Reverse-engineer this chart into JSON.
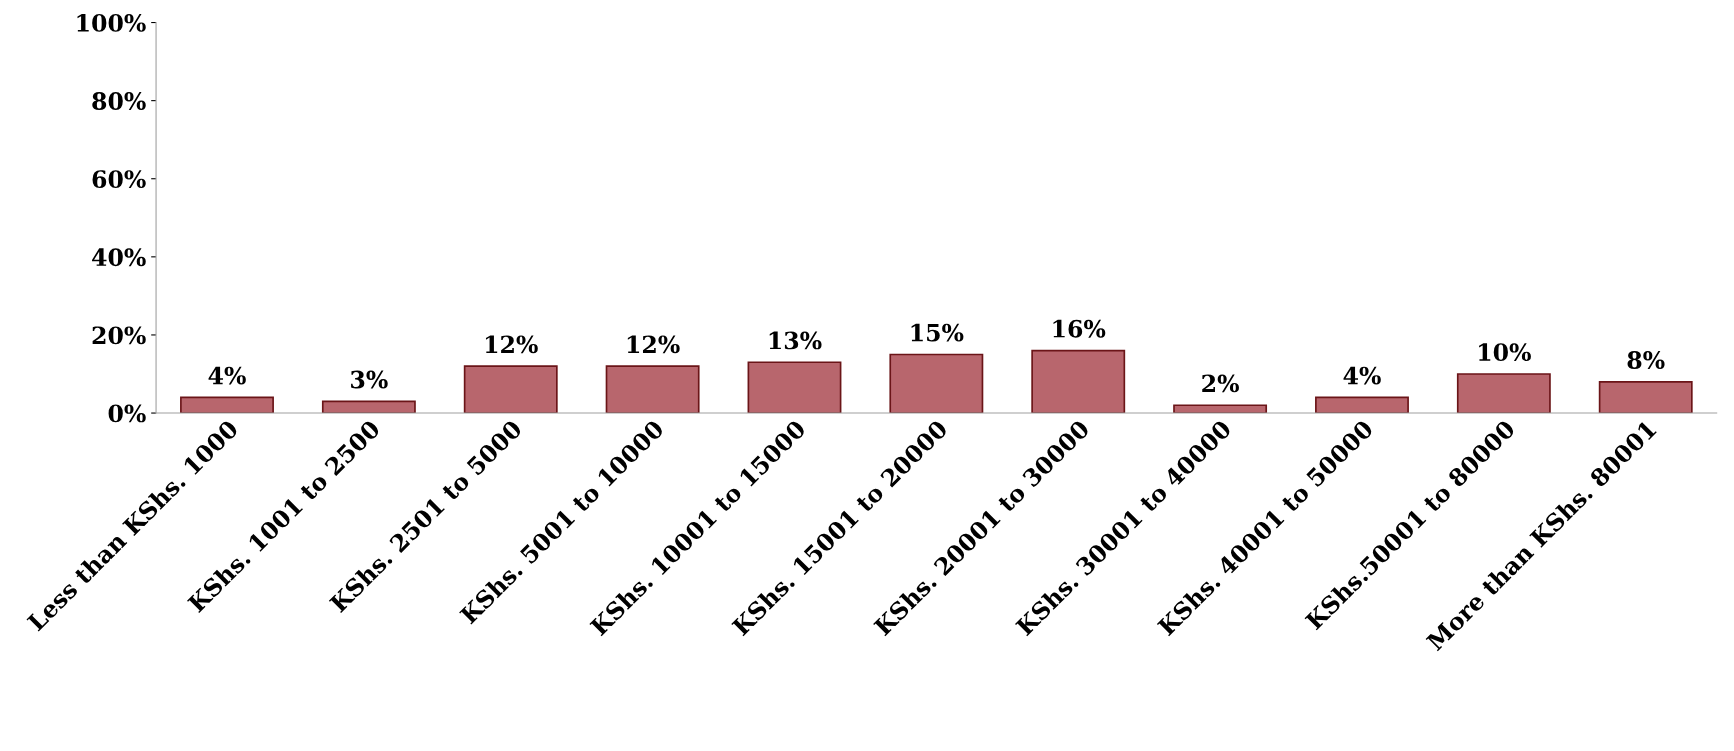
{
  "chart_data": {
    "type": "bar",
    "categories": [
      "Less than KShs. 1000",
      "KShs. 1001 to 2500",
      "KShs. 2501 to 5000",
      "KShs. 5001 to 10000",
      "KShs. 10001 to 15000",
      "KShs. 15001 to 20000",
      "KShs. 20001 to 30000",
      "KShs. 30001 to 40000",
      "KShs. 40001 to 50000",
      "KShs.50001 to 80000",
      "More than KShs. 80001"
    ],
    "values": [
      4,
      3,
      12,
      12,
      13,
      15,
      16,
      2,
      4,
      10,
      8
    ],
    "value_labels": [
      "4%",
      "3%",
      "12%",
      "12%",
      "13%",
      "15%",
      "16%",
      "2%",
      "4%",
      "10%",
      "8%"
    ],
    "color": "#b8666d",
    "ylim": [
      0,
      100
    ],
    "yticks": [
      {
        "value": 0,
        "label": "0%"
      },
      {
        "value": 20,
        "label": "20%"
      },
      {
        "value": 40,
        "label": "40%"
      },
      {
        "value": 60,
        "label": "60%"
      },
      {
        "value": 80,
        "label": "80%"
      },
      {
        "value": 100,
        "label": "100%"
      }
    ],
    "grid": false,
    "legend": false
  }
}
